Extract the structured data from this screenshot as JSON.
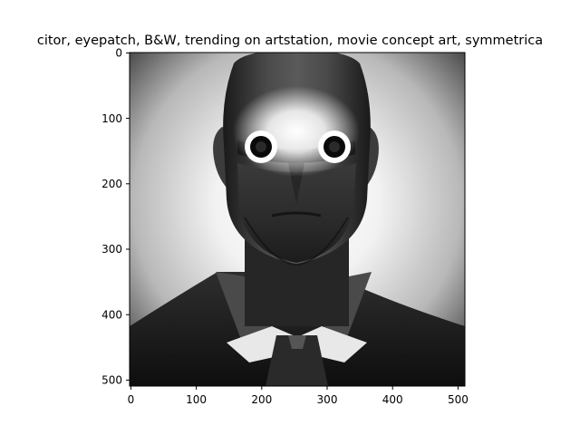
{
  "figure": {
    "title": "citor,  eyepatch, B&W, trending on artstation, movie concept art, symmetrica",
    "image_description_icon": "black-and-white-portrait-icon",
    "x_ticks": [
      "0",
      "100",
      "200",
      "300",
      "400",
      "500"
    ],
    "y_ticks": [
      "0",
      "100",
      "200",
      "300",
      "400",
      "500"
    ]
  },
  "colors": {
    "axes_frame": "#000000",
    "background": "#ffffff"
  }
}
